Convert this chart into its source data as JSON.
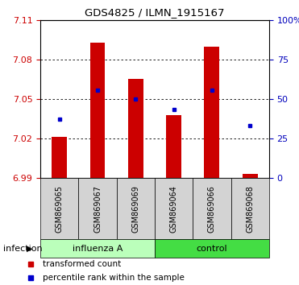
{
  "title": "GDS4825 / ILMN_1915167",
  "samples": [
    "GSM869065",
    "GSM869067",
    "GSM869069",
    "GSM869064",
    "GSM869066",
    "GSM869068"
  ],
  "bar_tops": [
    7.021,
    7.093,
    7.065,
    7.038,
    7.09,
    6.993
  ],
  "bar_base": 6.99,
  "blue_dots": [
    7.035,
    7.057,
    7.05,
    7.042,
    7.057,
    7.03
  ],
  "groups": [
    {
      "label": "influenza A",
      "indices": [
        0,
        1,
        2
      ]
    },
    {
      "label": "control",
      "indices": [
        3,
        4,
        5
      ]
    }
  ],
  "ylim": [
    6.99,
    7.11
  ],
  "yticks_left": [
    6.99,
    7.02,
    7.05,
    7.08,
    7.11
  ],
  "yticks_right": [
    0,
    25,
    50,
    75,
    100
  ],
  "bar_color": "#CC0000",
  "dot_color": "#0000CC",
  "group_label": "infection",
  "group_colors": [
    "#BBFFBB",
    "#44DD44"
  ],
  "legend_items": [
    {
      "label": "transformed count",
      "color": "#CC0000"
    },
    {
      "label": "percentile rank within the sample",
      "color": "#0000CC"
    }
  ],
  "tick_color_left": "#CC0000",
  "tick_color_right": "#0000BB",
  "sample_bg_color": "#D3D3D3",
  "bar_width": 0.4
}
